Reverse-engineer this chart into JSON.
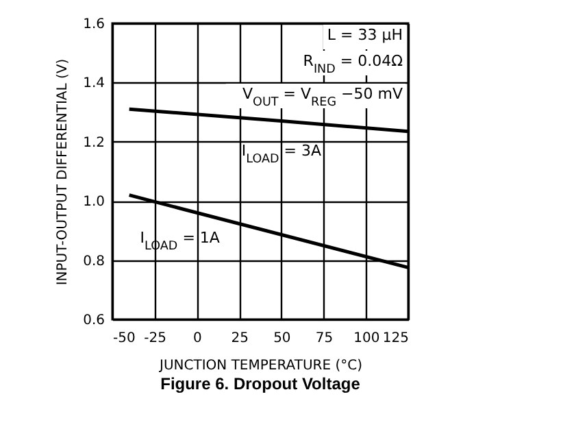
{
  "chart_data": {
    "type": "line",
    "title": "Figure 6. Dropout Voltage",
    "xlabel": "JUNCTION TEMPERATURE (°C)",
    "ylabel": "INPUT-OUTPUT DIFFERENTIAL (V)",
    "xlim": [
      -50,
      125
    ],
    "xticks": [
      -50,
      -25,
      0,
      25,
      50,
      75,
      100,
      125
    ],
    "ylim": [
      0.6,
      1.6
    ],
    "yticks": [
      {
        "value": 0.6,
        "label": "0.6"
      },
      {
        "value": 0.8,
        "label": "0.8"
      },
      {
        "value": 1,
        "label": "1.0"
      },
      {
        "value": 1.2,
        "label": "1.2"
      },
      {
        "value": 1.4,
        "label": "1.4"
      },
      {
        "value": 1.6,
        "label": "1.6"
      }
    ],
    "grid": true,
    "legend": false,
    "series": [
      {
        "name": "I$_{LOAD}$ = 3A",
        "color": "#000000",
        "x": [
          -40,
          50,
          125
        ],
        "values": [
          1.31,
          1.27,
          1.235
        ]
      },
      {
        "name": "I$_{LOAD}$ = 1A",
        "color": "#000000",
        "x": [
          -40,
          -10,
          125
        ],
        "values": [
          1.02,
          0.975,
          0.775
        ]
      }
    ],
    "annotations": [
      "L = 33 μH",
      "R$_{IND}$ = 0.04Ω",
      "V$_{OUT}$ = V$_{REG}$ −50 mV"
    ]
  }
}
